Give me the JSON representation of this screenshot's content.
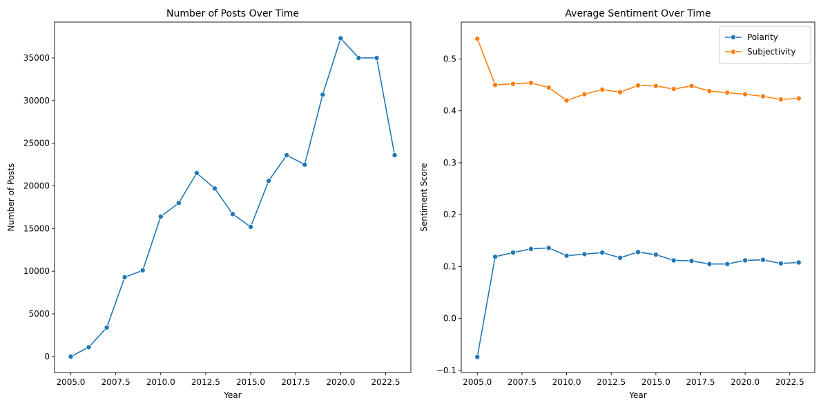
{
  "chart_data": [
    {
      "type": "line",
      "title": "Number of Posts Over Time",
      "xlabel": "Year",
      "ylabel": "Number of Posts",
      "xlim": [
        2004.1,
        2023.9
      ],
      "ylim": [
        -1870,
        39200
      ],
      "xticks": [
        2005,
        2007.5,
        2010,
        2012.5,
        2015,
        2017.5,
        2020,
        2022.5
      ],
      "xtick_labels": [
        "2005.0",
        "2007.5",
        "2010.0",
        "2012.5",
        "2015.0",
        "2017.5",
        "2020.0",
        "2022.5"
      ],
      "yticks": [
        0,
        5000,
        10000,
        15000,
        20000,
        25000,
        30000,
        35000
      ],
      "ytick_labels": [
        "0",
        "5000",
        "10000",
        "15000",
        "20000",
        "25000",
        "30000",
        "35000"
      ],
      "legend": "none",
      "grid": false,
      "x": [
        2005,
        2006,
        2007,
        2008,
        2009,
        2010,
        2011,
        2012,
        2013,
        2014,
        2015,
        2016,
        2017,
        2018,
        2019,
        2020,
        2021,
        2022,
        2023
      ],
      "series": [
        {
          "color": "#1f77b4",
          "values": [
            0,
            1100,
            3400,
            9300,
            10100,
            16400,
            18000,
            21500,
            19700,
            16700,
            15200,
            20600,
            23600,
            22500,
            30700,
            37300,
            35000,
            35000,
            23600
          ]
        }
      ]
    },
    {
      "type": "line",
      "title": "Average Sentiment Over Time",
      "xlabel": "Year",
      "ylabel": "Sentiment Score",
      "xlim": [
        2004.1,
        2023.9
      ],
      "ylim": [
        -0.104,
        0.571
      ],
      "xticks": [
        2005,
        2007.5,
        2010,
        2012.5,
        2015,
        2017.5,
        2020,
        2022.5
      ],
      "xtick_labels": [
        "2005.0",
        "2007.5",
        "2010.0",
        "2012.5",
        "2015.0",
        "2017.5",
        "2020.0",
        "2022.5"
      ],
      "yticks": [
        -0.1,
        0.0,
        0.1,
        0.2,
        0.3,
        0.4,
        0.5
      ],
      "ytick_labels": [
        "−0.1",
        "0.0",
        "0.1",
        "0.2",
        "0.3",
        "0.4",
        "0.5"
      ],
      "legend": "top-right",
      "grid": false,
      "x": [
        2005,
        2006,
        2007,
        2008,
        2009,
        2010,
        2011,
        2012,
        2013,
        2014,
        2015,
        2016,
        2017,
        2018,
        2019,
        2020,
        2021,
        2022,
        2023
      ],
      "series": [
        {
          "name": "Polarity",
          "color": "#1f77b4",
          "values": [
            -0.074,
            0.119,
            0.127,
            0.134,
            0.136,
            0.121,
            0.124,
            0.127,
            0.117,
            0.128,
            0.123,
            0.112,
            0.111,
            0.105,
            0.105,
            0.112,
            0.113,
            0.106,
            0.108
          ]
        },
        {
          "name": "Subjectivity",
          "color": "#ff7f0e",
          "values": [
            0.539,
            0.45,
            0.452,
            0.454,
            0.445,
            0.42,
            0.432,
            0.441,
            0.436,
            0.449,
            0.448,
            0.442,
            0.448,
            0.438,
            0.435,
            0.432,
            0.428,
            0.422,
            0.424
          ]
        }
      ]
    }
  ]
}
